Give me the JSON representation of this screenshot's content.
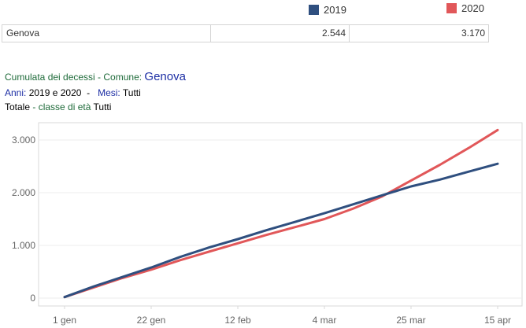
{
  "legend": {
    "series_2019": {
      "label": "2019",
      "color": "#2f4f7f"
    },
    "series_2020": {
      "label": "2020",
      "color": "#e15759"
    }
  },
  "summary": {
    "name": "Genova",
    "value_2019": "2.544",
    "value_2020": "3.170"
  },
  "info": {
    "line1_prefix": "Cumulata dei decessi -  Comune: ",
    "line1_city": "Genova",
    "line2_anni_label": "Anni: ",
    "line2_anni_value": "2019 e 2020",
    "line2_sep": "  -   ",
    "line2_mesi_label": "Mesi: ",
    "line2_mesi_value": "Tutti",
    "line3_totale": "Totale ",
    "line3_classe": "- classe di età ",
    "line3_value": "Tutti"
  },
  "chart_data": {
    "type": "line",
    "x_unit": "day of year",
    "xlim": [
      1,
      105
    ],
    "ylim": [
      0,
      3000
    ],
    "y_ticks": [
      0,
      1000,
      2000,
      3000
    ],
    "y_tick_labels": [
      "0",
      "1.000",
      "2.000",
      "3.000"
    ],
    "x_ticks": [
      1,
      22,
      43,
      64,
      85,
      106
    ],
    "x_tick_labels": [
      "1 gen",
      "22 gen",
      "12 feb",
      "4 mar",
      "25 mar",
      "15 apr"
    ],
    "grid": true,
    "series": [
      {
        "name": "2019",
        "color": "#2f4f7f",
        "x": [
          1,
          8,
          15,
          22,
          29,
          36,
          43,
          50,
          57,
          64,
          71,
          78,
          85,
          92,
          99,
          106
        ],
        "y": [
          20,
          220,
          400,
          580,
          780,
          960,
          1120,
          1290,
          1450,
          1610,
          1780,
          1950,
          2120,
          2250,
          2400,
          2550
        ]
      },
      {
        "name": "2020",
        "color": "#e15759",
        "x": [
          1,
          8,
          15,
          22,
          29,
          36,
          43,
          50,
          57,
          64,
          71,
          78,
          85,
          92,
          99,
          106
        ],
        "y": [
          20,
          200,
          380,
          540,
          720,
          880,
          1040,
          1200,
          1350,
          1500,
          1700,
          1930,
          2230,
          2530,
          2850,
          3190
        ]
      }
    ]
  }
}
